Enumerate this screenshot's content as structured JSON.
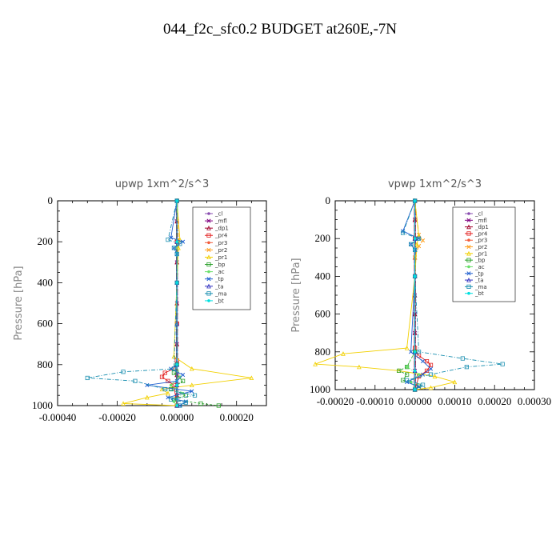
{
  "title": "044_f2c_sfc0.2  BUDGET at260E,-7N",
  "colors": {
    "_cl": "#8a4fb0",
    "_mfl": "#800080",
    "_dp1": "#a0002a",
    "_pr4": "#e32020",
    "_pr3": "#f25c3c",
    "_pr2": "#ffa020",
    "_pr1": "#f2d000",
    "_bp": "#2aa02a",
    "_ac": "#6ce06c",
    "_tp": "#2060d0",
    "_ta": "#3030c0",
    "_ma": "#1a8fb0",
    "_bt": "#00e0e0"
  },
  "chart_data": [
    {
      "type": "line",
      "title": "upwp   1xm^2/s^3",
      "ylabel": "Pressure [hPa]",
      "xlabel": "",
      "xlim": [
        -0.0004,
        0.0003
      ],
      "ylim": [
        1000,
        0
      ],
      "xticks": [
        "-0.00040",
        "-0.00020",
        "0.00000",
        "0.00020"
      ],
      "xtick_values": [
        -0.0004,
        -0.0002,
        0.0,
        0.0002
      ],
      "yticks": [
        "0",
        "200",
        "400",
        "600",
        "800",
        "1000"
      ],
      "legend": "top-right",
      "series": [
        {
          "name": "_cl",
          "x": [
            0,
            0,
            0,
            0,
            0,
            0,
            0,
            0,
            0,
            0,
            0,
            0,
            0
          ],
          "y": [
            0,
            100,
            200,
            300,
            400,
            500,
            600,
            700,
            800,
            850,
            900,
            950,
            1000
          ]
        },
        {
          "name": "_mfl",
          "x": [
            0,
            0,
            0,
            0,
            0,
            0,
            0,
            0,
            0,
            0,
            0,
            0,
            0
          ],
          "y": [
            0,
            100,
            200,
            300,
            400,
            500,
            600,
            700,
            800,
            850,
            900,
            950,
            1000
          ]
        },
        {
          "name": "_dp1",
          "x": [
            0,
            0,
            0,
            0,
            0,
            0,
            0,
            0,
            0,
            0,
            0,
            0,
            0
          ],
          "y": [
            0,
            100,
            200,
            300,
            400,
            500,
            600,
            700,
            800,
            850,
            900,
            950,
            1000
          ]
        },
        {
          "name": "_pr4",
          "x": [
            0,
            0,
            0,
            0,
            0,
            -1e-05,
            -4e-05,
            -5e-05,
            -3e-05,
            -1e-05,
            0
          ],
          "y": [
            0,
            200,
            400,
            600,
            780,
            820,
            840,
            860,
            880,
            900,
            1000
          ]
        },
        {
          "name": "_pr3",
          "x": [
            0,
            0,
            0,
            0,
            0,
            0,
            0
          ],
          "y": [
            0,
            200,
            400,
            600,
            800,
            900,
            1000
          ]
        },
        {
          "name": "_pr2",
          "x": [
            0,
            5e-06,
            0,
            0,
            0,
            0
          ],
          "y": [
            0,
            190,
            230,
            400,
            800,
            1000
          ]
        },
        {
          "name": "_pr1",
          "x": [
            0,
            1e-05,
            5e-06,
            0,
            -1e-05,
            5e-05,
            0.00025,
            5e-05,
            -5e-05,
            -3e-05,
            -0.0001,
            -0.00018,
            0
          ],
          "y": [
            0,
            190,
            230,
            400,
            760,
            820,
            865,
            900,
            920,
            940,
            960,
            990,
            1000
          ]
        },
        {
          "name": "_bp",
          "x": [
            0,
            0,
            -1e-05,
            2e-05,
            -2e-05,
            3e-05,
            -1e-05,
            8e-05,
            0.00014
          ],
          "y": [
            0,
            800,
            840,
            880,
            920,
            950,
            970,
            990,
            1000
          ]
        },
        {
          "name": "_ac",
          "x": [
            0,
            0,
            1e-05,
            -2e-05,
            2e-05,
            -1e-05,
            0
          ],
          "y": [
            0,
            800,
            860,
            900,
            940,
            980,
            1000
          ]
        },
        {
          "name": "_tp",
          "x": [
            0,
            -2e-05,
            2e-05,
            -1e-05,
            0,
            0,
            0,
            -2e-05,
            2e-05,
            0,
            -0.0001,
            5e-05,
            -3e-05,
            3e-05,
            1e-05
          ],
          "y": [
            0,
            180,
            200,
            230,
            260,
            400,
            800,
            820,
            850,
            880,
            900,
            930,
            960,
            980,
            1000
          ]
        },
        {
          "name": "_ta",
          "x": [
            0,
            0,
            0,
            0,
            0,
            0,
            0
          ],
          "y": [
            0,
            200,
            400,
            600,
            800,
            900,
            1000
          ]
        },
        {
          "name": "_ma",
          "x": [
            0,
            -3e-05,
            1e-05,
            -1e-05,
            0,
            0,
            -1e-05,
            -0.00018,
            -0.0003,
            -0.00014,
            -4e-05,
            6e-05,
            -2e-05,
            3e-05,
            1e-05
          ],
          "y": [
            0,
            190,
            210,
            230,
            260,
            400,
            820,
            835,
            865,
            880,
            920,
            950,
            970,
            985,
            1000
          ]
        },
        {
          "name": "_bt",
          "x": [
            0,
            0,
            0,
            0,
            0,
            0
          ],
          "y": [
            0,
            200,
            400,
            800,
            900,
            1000
          ]
        }
      ]
    },
    {
      "type": "line",
      "title": "vpwp   1xm^2/s^3",
      "ylabel": "Pressure [hPa]",
      "xlabel": "",
      "xlim": [
        -0.0002,
        0.0003
      ],
      "ylim": [
        1000,
        0
      ],
      "xticks": [
        "-0.00020",
        "-0.00010",
        "0.00000",
        "0.00010",
        "0.00020",
        "0.00030"
      ],
      "xtick_values": [
        -0.0002,
        -0.0001,
        0.0,
        0.0001,
        0.0002,
        0.0003
      ],
      "yticks": [
        "0",
        "200",
        "400",
        "600",
        "800",
        "1000"
      ],
      "legend": "top-right",
      "series": [
        {
          "name": "_cl",
          "x": [
            0,
            0,
            0,
            0,
            0,
            0,
            0,
            0,
            0,
            0,
            0
          ],
          "y": [
            0,
            100,
            200,
            300,
            400,
            500,
            600,
            700,
            800,
            900,
            1000
          ]
        },
        {
          "name": "_mfl",
          "x": [
            0,
            0,
            0,
            0,
            0,
            0,
            0,
            0,
            0,
            0,
            0
          ],
          "y": [
            0,
            100,
            200,
            300,
            400,
            500,
            600,
            700,
            800,
            900,
            1000
          ]
        },
        {
          "name": "_dp1",
          "x": [
            0,
            0,
            0,
            0,
            0,
            0,
            0,
            0,
            0,
            0,
            0
          ],
          "y": [
            0,
            100,
            200,
            300,
            400,
            500,
            600,
            700,
            800,
            900,
            1000
          ]
        },
        {
          "name": "_pr4",
          "x": [
            0,
            0,
            0,
            0,
            1e-05,
            3e-05,
            4e-05,
            3e-05,
            1e-05,
            0
          ],
          "y": [
            0,
            200,
            400,
            780,
            820,
            850,
            870,
            900,
            930,
            1000
          ]
        },
        {
          "name": "_pr3",
          "x": [
            0,
            0,
            0,
            0,
            0,
            0
          ],
          "y": [
            0,
            200,
            400,
            800,
            900,
            1000
          ]
        },
        {
          "name": "_pr2",
          "x": [
            0,
            1e-05,
            2e-05,
            1e-05,
            0,
            0,
            0
          ],
          "y": [
            0,
            180,
            210,
            240,
            300,
            800,
            1000
          ]
        },
        {
          "name": "_pr1",
          "x": [
            0,
            1e-05,
            5e-06,
            0,
            -2e-05,
            -0.00018,
            -0.00025,
            -0.00014,
            -4e-05,
            5e-05,
            0.0001,
            4e-05,
            0
          ],
          "y": [
            0,
            190,
            230,
            400,
            780,
            810,
            865,
            880,
            900,
            930,
            960,
            990,
            1000
          ]
        },
        {
          "name": "_bp",
          "x": [
            0,
            0,
            -2e-05,
            -4e-05,
            -2e-05,
            -3e-05,
            1e-05,
            0
          ],
          "y": [
            0,
            800,
            880,
            900,
            920,
            950,
            980,
            1000
          ]
        },
        {
          "name": "_ac",
          "x": [
            0,
            0,
            -2e-05,
            1e-05,
            -1e-05,
            0
          ],
          "y": [
            0,
            800,
            880,
            920,
            960,
            1000
          ]
        },
        {
          "name": "_tp",
          "x": [
            0,
            -3e-05,
            1e-05,
            -1e-05,
            0,
            0,
            -1e-05,
            2e-05,
            4e-05,
            2e-05,
            -2e-05,
            1e-05,
            0
          ],
          "y": [
            0,
            160,
            200,
            230,
            260,
            400,
            800,
            850,
            890,
            920,
            960,
            985,
            1000
          ]
        },
        {
          "name": "_ta",
          "x": [
            0,
            0,
            0,
            0,
            0,
            0
          ],
          "y": [
            0,
            200,
            400,
            800,
            900,
            1000
          ]
        },
        {
          "name": "_ma",
          "x": [
            0,
            -3e-05,
            1e-05,
            -1e-05,
            0,
            0,
            1e-05,
            0.00012,
            0.00022,
            0.00013,
            4e-05,
            -2e-05,
            2e-05,
            0
          ],
          "y": [
            0,
            170,
            200,
            230,
            260,
            400,
            800,
            835,
            865,
            880,
            920,
            950,
            975,
            1000
          ]
        },
        {
          "name": "_bt",
          "x": [
            0,
            0,
            0,
            0,
            0,
            0
          ],
          "y": [
            0,
            200,
            400,
            800,
            900,
            1000
          ]
        }
      ]
    }
  ]
}
